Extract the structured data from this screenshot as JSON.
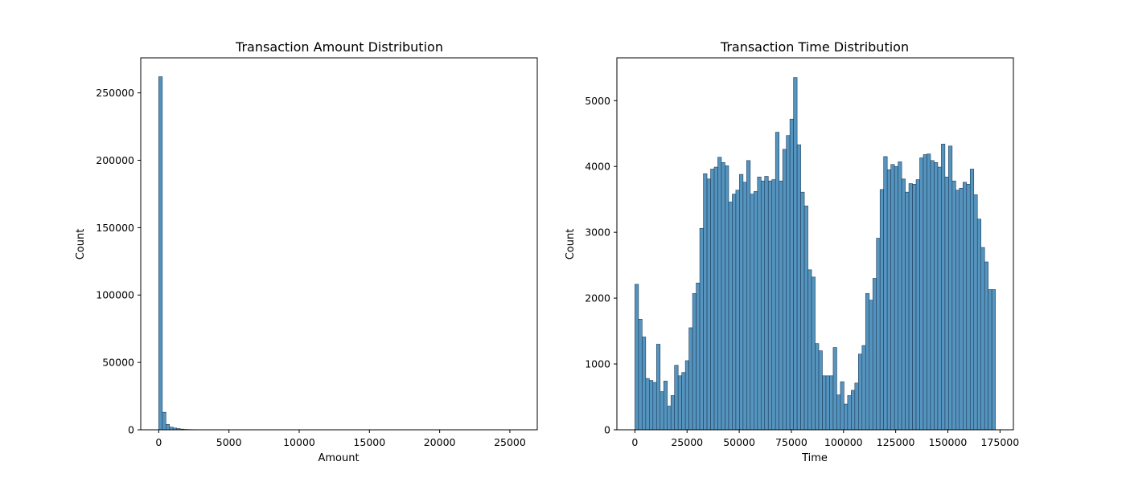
{
  "chart_data": [
    {
      "type": "bar",
      "title": "Transaction Amount Distribution",
      "xlabel": "Amount",
      "ylabel": "Count",
      "xlim": [
        -1280,
        26950
      ],
      "ylim": [
        0,
        276000
      ],
      "xticks": [
        0,
        5000,
        10000,
        15000,
        20000,
        25000
      ],
      "yticks": [
        0,
        50000,
        100000,
        150000,
        200000,
        250000
      ],
      "bin_start": 0,
      "bin_width": 256,
      "values": [
        262000,
        13000,
        4000,
        2000,
        1300,
        900,
        500,
        300,
        200,
        150,
        120,
        100,
        80,
        60,
        50,
        40,
        30,
        25,
        20,
        15,
        12,
        10,
        8,
        6,
        5,
        4,
        3,
        3,
        2,
        2,
        2,
        2,
        1,
        1,
        1,
        1,
        1,
        1,
        1,
        1,
        1,
        1,
        1,
        1,
        1,
        1,
        1,
        1,
        1,
        1,
        1,
        1,
        1,
        1,
        1,
        1,
        1,
        1,
        1,
        1,
        1,
        1,
        1,
        1,
        1,
        1,
        1,
        1,
        1,
        1,
        1,
        1,
        1,
        1,
        1,
        1,
        1,
        1,
        1,
        1,
        1,
        1,
        1,
        1,
        1,
        1,
        1,
        1,
        1,
        1,
        1,
        1,
        1,
        1,
        1,
        1,
        1,
        1,
        1,
        1
      ],
      "bar_color": "#4c8ebb",
      "edge_color": "#1f3d5a",
      "grid": false
    },
    {
      "type": "bar",
      "title": "Transaction Time Distribution",
      "xlabel": "Time",
      "ylabel": "Count",
      "xlim": [
        -8630,
        181420
      ],
      "ylim": [
        0,
        5650
      ],
      "xticks": [
        0,
        25000,
        50000,
        75000,
        100000,
        125000,
        150000,
        175000
      ],
      "yticks": [
        0,
        1000,
        2000,
        3000,
        4000,
        5000
      ],
      "bin_start": 0,
      "bin_width": 1728,
      "values": [
        2210,
        1680,
        1410,
        780,
        750,
        720,
        1300,
        580,
        740,
        360,
        520,
        980,
        820,
        870,
        1050,
        1550,
        2070,
        2230,
        3060,
        3890,
        3810,
        3960,
        3990,
        4140,
        4060,
        4010,
        3460,
        3580,
        3640,
        3880,
        3760,
        4090,
        3580,
        3620,
        3840,
        3780,
        3850,
        3780,
        3800,
        4520,
        3780,
        4260,
        4470,
        4720,
        5350,
        4330,
        3610,
        3400,
        2430,
        2320,
        1310,
        1200,
        820,
        820,
        820,
        1250,
        530,
        730,
        390,
        520,
        600,
        710,
        1150,
        1280,
        2070,
        1970,
        2300,
        2910,
        3650,
        4150,
        3950,
        4030,
        4000,
        4070,
        3810,
        3610,
        3740,
        3730,
        3800,
        4130,
        4180,
        4190,
        4090,
        4060,
        3990,
        4340,
        3840,
        4310,
        3780,
        3640,
        3670,
        3760,
        3730,
        3960,
        3570,
        3200,
        2770,
        2550,
        2130,
        2130
      ],
      "bar_color": "#4c8ebb",
      "edge_color": "#1f3d5a",
      "grid": false
    }
  ]
}
